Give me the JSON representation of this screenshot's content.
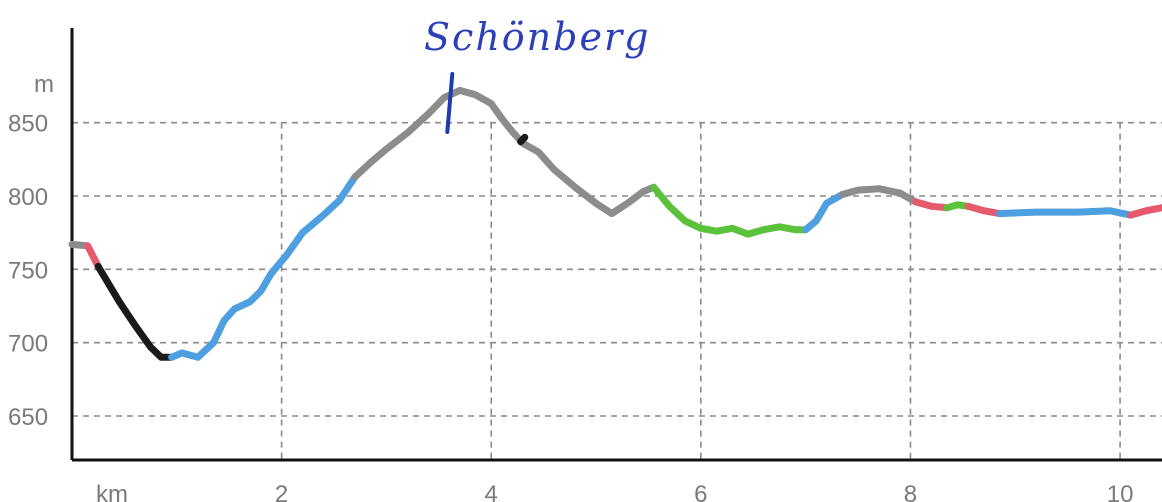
{
  "chart_data": {
    "type": "line",
    "title": "",
    "subtitle": "",
    "xlabel": "km",
    "ylabel": "m",
    "xlim": [
      0,
      10.4
    ],
    "ylim": [
      620,
      920
    ],
    "x_ticks": [
      2,
      4,
      6,
      8,
      10
    ],
    "y_ticks": [
      650,
      700,
      750,
      800,
      850
    ],
    "grid": "dashed",
    "legend": "none",
    "annotation": {
      "text": "Schönberg",
      "x": 3.6,
      "y": 875,
      "color": "#1f3bb0"
    },
    "colors": {
      "pink": "#e55a6c",
      "black": "#1a1a1a",
      "blue": "#4d9fe0",
      "gray": "#8c8c8c",
      "green": "#5cc23c"
    },
    "series": [
      {
        "color": "gray",
        "points": [
          [
            0.0,
            767
          ],
          [
            0.15,
            766
          ]
        ]
      },
      {
        "color": "pink",
        "points": [
          [
            0.15,
            766
          ],
          [
            0.25,
            752
          ]
        ]
      },
      {
        "color": "black",
        "points": [
          [
            0.25,
            752
          ],
          [
            0.45,
            728
          ],
          [
            0.6,
            712
          ],
          [
            0.75,
            697
          ],
          [
            0.85,
            690
          ],
          [
            0.95,
            690
          ]
        ]
      },
      {
        "color": "blue",
        "points": [
          [
            0.95,
            690
          ],
          [
            1.05,
            693
          ],
          [
            1.2,
            690
          ],
          [
            1.35,
            700
          ],
          [
            1.45,
            715
          ],
          [
            1.55,
            723
          ],
          [
            1.7,
            728
          ],
          [
            1.8,
            735
          ],
          [
            1.9,
            747
          ],
          [
            2.05,
            760
          ],
          [
            2.2,
            775
          ],
          [
            2.4,
            787
          ],
          [
            2.55,
            797
          ],
          [
            2.7,
            813
          ]
        ]
      },
      {
        "color": "gray",
        "points": [
          [
            2.7,
            813
          ],
          [
            2.85,
            823
          ],
          [
            3.0,
            832
          ],
          [
            3.2,
            843
          ],
          [
            3.4,
            856
          ],
          [
            3.55,
            867
          ],
          [
            3.7,
            872
          ],
          [
            3.85,
            869
          ],
          [
            4.0,
            863
          ],
          [
            4.1,
            853
          ],
          [
            4.2,
            844
          ],
          [
            4.3,
            836
          ],
          [
            4.45,
            830
          ],
          [
            4.6,
            818
          ],
          [
            4.8,
            806
          ],
          [
            5.0,
            795
          ],
          [
            5.15,
            788
          ],
          [
            5.3,
            795
          ],
          [
            5.45,
            803
          ],
          [
            5.55,
            806
          ]
        ]
      },
      {
        "color": "black",
        "points": [
          [
            4.28,
            837
          ],
          [
            4.32,
            840
          ]
        ]
      },
      {
        "color": "green",
        "points": [
          [
            5.55,
            806
          ],
          [
            5.7,
            793
          ],
          [
            5.85,
            783
          ],
          [
            6.0,
            778
          ],
          [
            6.15,
            776
          ],
          [
            6.3,
            778
          ],
          [
            6.45,
            774
          ],
          [
            6.6,
            777
          ],
          [
            6.75,
            779
          ],
          [
            6.9,
            777
          ],
          [
            7.0,
            777
          ]
        ]
      },
      {
        "color": "blue",
        "points": [
          [
            7.0,
            777
          ],
          [
            7.1,
            783
          ],
          [
            7.2,
            795
          ],
          [
            7.35,
            801
          ]
        ]
      },
      {
        "color": "gray",
        "points": [
          [
            7.35,
            801
          ],
          [
            7.5,
            804
          ],
          [
            7.7,
            805
          ],
          [
            7.9,
            802
          ],
          [
            8.05,
            796
          ]
        ]
      },
      {
        "color": "pink",
        "points": [
          [
            8.05,
            796
          ],
          [
            8.2,
            793
          ],
          [
            8.35,
            792
          ]
        ]
      },
      {
        "color": "green",
        "points": [
          [
            8.35,
            792
          ],
          [
            8.45,
            794
          ],
          [
            8.55,
            793
          ]
        ]
      },
      {
        "color": "pink",
        "points": [
          [
            8.55,
            793
          ],
          [
            8.7,
            790
          ],
          [
            8.85,
            788
          ]
        ]
      },
      {
        "color": "blue",
        "points": [
          [
            8.85,
            788
          ],
          [
            9.2,
            789
          ],
          [
            9.6,
            789
          ],
          [
            9.9,
            790
          ],
          [
            10.1,
            787
          ]
        ]
      },
      {
        "color": "pink",
        "points": [
          [
            10.1,
            787
          ],
          [
            10.25,
            790
          ],
          [
            10.4,
            792
          ]
        ]
      }
    ]
  }
}
